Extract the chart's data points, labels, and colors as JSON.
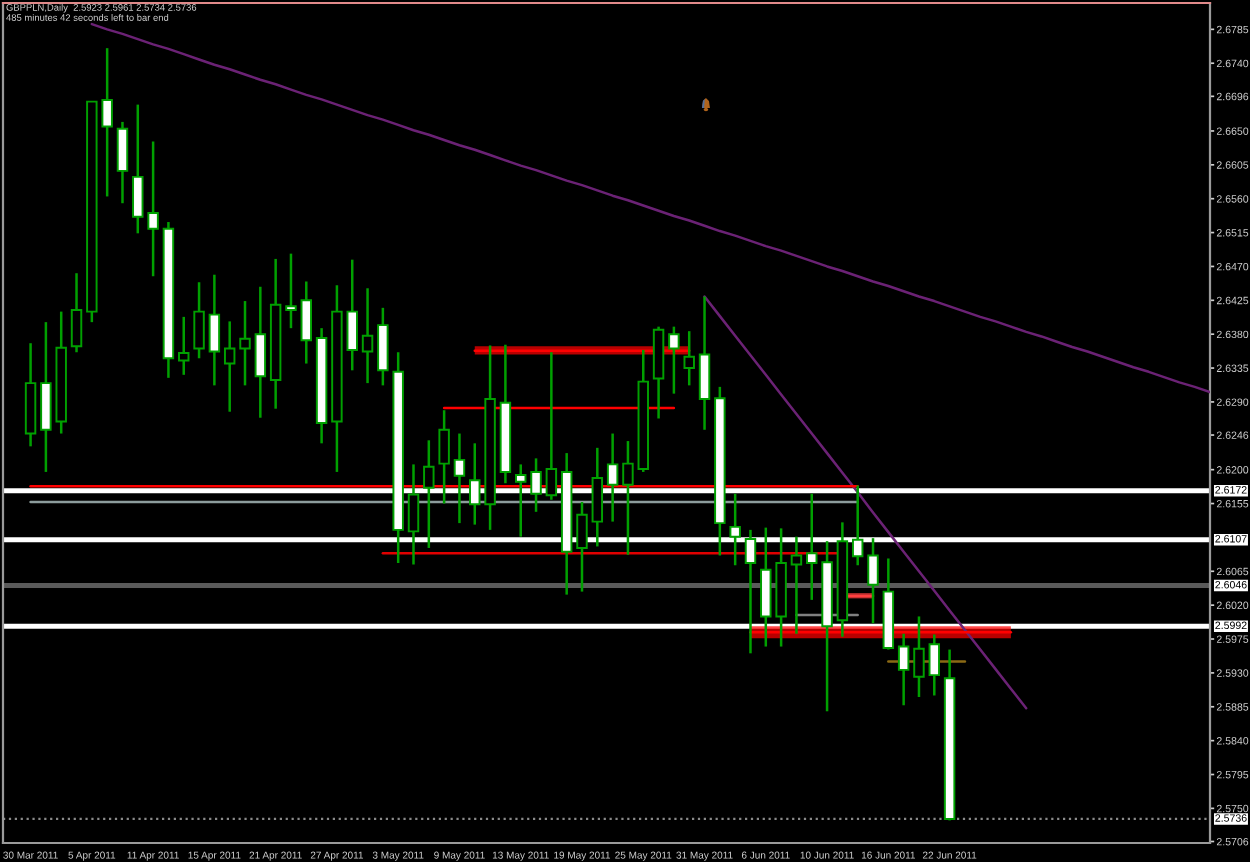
{
  "chart_data": {
    "type": "candlestick",
    "title": "GBPPLN,Daily  2.5923 2.5961 2.5734 2.5736",
    "subtitle": "485 minutes 42 seconds left to bar end",
    "categories": [
      "30 Mar 2011",
      null,
      null,
      null,
      "5 Apr 2011",
      null,
      null,
      null,
      "11 Apr 2011",
      null,
      null,
      null,
      "15 Apr 2011",
      null,
      null,
      null,
      "21 Apr 2011",
      null,
      null,
      null,
      "27 Apr 2011",
      null,
      null,
      null,
      "3 May 2011",
      null,
      null,
      null,
      "9 May 2011",
      null,
      null,
      null,
      "13 May 2011",
      null,
      null,
      null,
      "19 May 2011",
      null,
      null,
      null,
      "25 May 2011",
      null,
      null,
      null,
      "31 May 2011",
      null,
      null,
      null,
      "6 Jun 2011",
      null,
      null,
      null,
      "10 Jun 2011",
      null,
      null,
      null,
      "16 Jun 2011",
      null,
      null,
      null,
      "22 Jun 2011",
      null,
      null,
      null,
      null,
      null,
      null,
      null,
      null,
      null,
      null,
      null,
      null,
      null,
      null,
      null,
      null,
      null
    ],
    "ohlc": [
      [
        2.6248,
        2.6368,
        2.6231,
        2.6315
      ],
      [
        2.6315,
        2.6396,
        2.6197,
        2.6253
      ],
      [
        2.6264,
        2.641,
        2.6248,
        2.6362
      ],
      [
        2.6364,
        2.6461,
        2.6356,
        2.6412
      ],
      [
        2.641,
        2.6689,
        2.6396,
        2.6689
      ],
      [
        2.6691,
        2.676,
        2.6563,
        2.6656
      ],
      [
        2.6653,
        2.6662,
        2.6554,
        2.6597
      ],
      [
        2.6589,
        2.6685,
        2.6514,
        2.6536
      ],
      [
        2.6541,
        2.6636,
        2.6457,
        2.652
      ],
      [
        2.652,
        2.6529,
        2.6322,
        2.6348
      ],
      [
        2.6345,
        2.6403,
        2.6326,
        2.6355
      ],
      [
        2.6361,
        2.6449,
        2.6348,
        2.641
      ],
      [
        2.6406,
        2.6459,
        2.6312,
        2.6357
      ],
      [
        2.6341,
        2.6397,
        2.6277,
        2.6361
      ],
      [
        2.6361,
        2.6424,
        2.6312,
        2.6374
      ],
      [
        2.638,
        2.6443,
        2.6269,
        2.6324
      ],
      [
        2.6319,
        2.648,
        2.6281,
        2.6419
      ],
      [
        2.6417,
        2.6487,
        2.6388,
        2.6412
      ],
      [
        2.6425,
        2.645,
        2.6341,
        2.6372
      ],
      [
        2.6375,
        2.6388,
        2.6235,
        2.6262
      ],
      [
        2.6264,
        2.6445,
        2.6197,
        2.641
      ],
      [
        2.641,
        2.6479,
        2.6332,
        2.6359
      ],
      [
        2.6357,
        2.6441,
        2.6315,
        2.6378
      ],
      [
        2.6392,
        2.6415,
        2.6312,
        2.6332
      ],
      [
        2.633,
        2.6356,
        2.6076,
        2.612
      ],
      [
        2.6118,
        2.6207,
        2.6074,
        2.6167
      ],
      [
        2.6176,
        2.6239,
        2.6096,
        2.6204
      ],
      [
        2.6208,
        2.6279,
        2.6155,
        2.6253
      ],
      [
        2.6213,
        2.6248,
        2.6129,
        2.6192
      ],
      [
        2.6186,
        2.6235,
        2.6127,
        2.6154
      ],
      [
        2.6154,
        2.6365,
        2.612,
        2.6294
      ],
      [
        2.6289,
        2.6366,
        2.6182,
        2.6197
      ],
      [
        2.6193,
        2.6207,
        2.6111,
        2.6184
      ],
      [
        2.6197,
        2.6215,
        2.6144,
        2.6168
      ],
      [
        2.6166,
        2.6356,
        2.616,
        2.6201
      ],
      [
        2.6197,
        2.6222,
        2.6034,
        2.6091
      ],
      [
        2.6096,
        2.6157,
        2.6038,
        2.614
      ],
      [
        2.6131,
        2.6229,
        2.6098,
        2.6189
      ],
      [
        2.6207,
        2.6248,
        2.6131,
        2.618
      ],
      [
        2.618,
        2.6238,
        2.6087,
        2.6208
      ],
      [
        2.6201,
        2.6359,
        2.6197,
        2.6317
      ],
      [
        2.6321,
        2.639,
        2.6268,
        2.6386
      ],
      [
        2.638,
        2.639,
        2.6301,
        2.6361
      ],
      [
        2.6335,
        2.6384,
        2.6312,
        2.635
      ],
      [
        2.6353,
        2.643,
        2.6253,
        2.6294
      ],
      [
        2.6295,
        2.631,
        2.6086,
        2.6129
      ],
      [
        2.6124,
        2.6168,
        2.6073,
        2.6111
      ],
      [
        2.6108,
        2.612,
        2.5956,
        2.6076
      ],
      [
        2.6067,
        2.6123,
        2.5965,
        2.6005
      ],
      [
        2.6005,
        2.6122,
        2.5965,
        2.6076
      ],
      [
        2.6074,
        2.6111,
        2.5982,
        2.6086
      ],
      [
        2.6089,
        2.6168,
        2.6027,
        2.6076
      ],
      [
        2.6077,
        2.6105,
        2.5879,
        2.5992
      ],
      [
        2.6,
        2.613,
        2.5978,
        2.6105
      ],
      [
        2.6107,
        2.6179,
        2.6073,
        2.6085
      ],
      [
        2.6086,
        2.6109,
        2.5996,
        2.6047
      ],
      [
        2.6038,
        2.6082,
        2.5961,
        2.5963
      ],
      [
        2.5965,
        2.5982,
        2.5887,
        2.5934
      ],
      [
        2.5925,
        2.6005,
        2.5898,
        2.5962
      ],
      [
        2.5968,
        2.5981,
        2.59,
        2.5927
      ],
      [
        2.5923,
        2.5961,
        2.5734,
        2.5736
      ],
      null,
      null,
      null,
      null,
      null,
      null,
      null,
      null,
      null,
      null,
      null,
      null,
      null,
      null,
      null,
      null,
      null
    ],
    "color": "#00a000",
    "colors": [
      "#000000",
      "#ffffff",
      "#000000",
      "#000000",
      "#000000",
      "#ffffff",
      "#ffffff",
      "#ffffff",
      "#ffffff",
      "#ffffff",
      "#000000",
      "#000000",
      "#ffffff",
      "#000000",
      "#000000",
      "#ffffff",
      "#000000",
      "#ffffff",
      "#ffffff",
      "#ffffff",
      "#000000",
      "#ffffff",
      "#000000",
      "#ffffff",
      "#ffffff",
      "#000000",
      "#000000",
      "#000000",
      "#ffffff",
      "#ffffff",
      "#000000",
      "#ffffff",
      "#ffffff",
      "#ffffff",
      "#000000",
      "#ffffff",
      "#000000",
      "#000000",
      "#ffffff",
      "#000000",
      "#000000",
      "#000000",
      "#ffffff",
      "#000000",
      "#ffffff",
      "#ffffff",
      "#ffffff",
      "#ffffff",
      "#ffffff",
      "#000000",
      "#000000",
      "#ffffff",
      "#ffffff",
      "#000000",
      "#ffffff",
      "#ffffff",
      "#ffffff",
      "#ffffff",
      "#000000",
      "#ffffff",
      "#ffffff",
      null,
      null,
      null,
      null,
      null,
      null,
      null,
      null,
      null,
      null,
      null,
      null,
      null,
      null,
      null,
      null,
      null
    ],
    "series": [
      {
        "type": "line",
        "color": "#6b2275",
        "values": [
          null,
          null,
          null,
          null,
          2.6792,
          2.6785,
          2.6779,
          2.6772,
          2.6765,
          2.6759,
          2.6752,
          2.6745,
          2.6738,
          2.6732,
          2.6725,
          2.6718,
          2.6712,
          2.6705,
          2.6698,
          2.6692,
          2.6685,
          2.6678,
          2.6671,
          2.6665,
          2.6658,
          2.6651,
          2.6645,
          2.6638,
          2.6631,
          2.6625,
          2.6618,
          2.6611,
          2.6604,
          2.6598,
          2.6591,
          2.6584,
          2.6578,
          2.6571,
          2.6564,
          2.6558,
          2.6551,
          2.6544,
          2.6537,
          2.6531,
          2.6524,
          2.6517,
          2.6511,
          2.6504,
          2.6497,
          2.6491,
          2.6484,
          2.6477,
          2.647,
          2.6464,
          2.6457,
          2.645,
          2.6444,
          2.6437,
          2.643,
          2.6424,
          2.6417,
          2.641,
          2.6403,
          2.6397,
          2.639,
          2.6383,
          2.6377,
          2.637,
          2.6363,
          2.6357,
          2.635,
          2.6343,
          2.6336,
          2.633,
          2.6323,
          2.6316,
          2.631,
          2.6303
        ]
      },
      {
        "type": "line",
        "color": "#6b2275",
        "values": [
          null,
          null,
          null,
          null,
          null,
          null,
          null,
          null,
          null,
          null,
          null,
          null,
          null,
          null,
          null,
          null,
          null,
          null,
          null,
          null,
          null,
          null,
          null,
          null,
          null,
          null,
          null,
          null,
          null,
          null,
          null,
          null,
          null,
          null,
          null,
          null,
          null,
          null,
          null,
          null,
          null,
          null,
          null,
          null,
          2.643,
          2.6404,
          2.6378,
          2.6352,
          2.6326,
          2.63,
          2.6274,
          2.6248,
          2.6222,
          2.6196,
          2.617,
          2.6143,
          2.6117,
          2.6091,
          2.6065,
          2.6039,
          2.6013,
          2.5987,
          2.5961,
          2.5935,
          2.5909,
          2.5883,
          null,
          null,
          null,
          null,
          null,
          null,
          null,
          null,
          null,
          null,
          null,
          null
        ]
      },
      {
        "type": "line",
        "color": "#ff0000",
        "values": [
          null,
          null,
          null,
          null,
          null,
          null,
          null,
          null,
          null,
          null,
          null,
          null,
          null,
          null,
          null,
          null,
          null,
          null,
          null,
          null,
          null,
          null,
          null,
          null,
          null,
          null,
          null,
          null,
          null,
          2.6358,
          2.6358,
          2.6358,
          2.6358,
          2.6358,
          2.6358,
          2.6358,
          2.6358,
          2.6358,
          2.6358,
          2.6358,
          2.6358,
          2.6358,
          2.6358,
          2.6358,
          null,
          null,
          null,
          null,
          null,
          null,
          null,
          null,
          null,
          null,
          null,
          null,
          null,
          null,
          null,
          null,
          null,
          null,
          null,
          null,
          null,
          null,
          null,
          null,
          null,
          null,
          null,
          null,
          null,
          null,
          null,
          null,
          null,
          null
        ],
        "lower": [
          null,
          null,
          null,
          null,
          null,
          null,
          null,
          null,
          null,
          null,
          null,
          null,
          null,
          null,
          null,
          null,
          null,
          null,
          null,
          null,
          null,
          null,
          null,
          null,
          null,
          null,
          null,
          null,
          null,
          2.6353,
          2.6353,
          2.6353,
          2.6353,
          2.6353,
          2.6353,
          2.6353,
          2.6353,
          2.6353,
          2.6353,
          2.6353,
          2.6353,
          2.6353,
          2.6353,
          2.6353,
          null,
          null,
          null,
          null,
          null,
          null,
          null,
          null,
          null,
          null,
          null,
          null,
          null,
          null,
          null,
          null,
          null,
          null,
          null,
          null,
          null,
          null,
          null,
          null,
          null,
          null,
          null,
          null,
          null,
          null,
          null,
          null,
          null,
          null
        ],
        "upper": [
          null,
          null,
          null,
          null,
          null,
          null,
          null,
          null,
          null,
          null,
          null,
          null,
          null,
          null,
          null,
          null,
          null,
          null,
          null,
          null,
          null,
          null,
          null,
          null,
          null,
          null,
          null,
          null,
          null,
          2.6364,
          2.6364,
          2.6364,
          2.6364,
          2.6364,
          2.6364,
          2.6364,
          2.6364,
          2.6364,
          2.6364,
          2.6364,
          2.6364,
          2.6364,
          2.6364,
          2.6364,
          null,
          null,
          null,
          null,
          null,
          null,
          null,
          null,
          null,
          null,
          null,
          null,
          null,
          null,
          null,
          null,
          null,
          null,
          null,
          null,
          null,
          null,
          null,
          null,
          null,
          null,
          null,
          null,
          null,
          null,
          null,
          null,
          null,
          null
        ]
      },
      {
        "type": "line",
        "color": "#ff0000",
        "values": [
          null,
          null,
          null,
          null,
          null,
          null,
          null,
          null,
          null,
          null,
          null,
          null,
          null,
          null,
          null,
          null,
          null,
          null,
          null,
          null,
          null,
          null,
          null,
          null,
          null,
          null,
          null,
          2.6282,
          2.6282,
          2.6282,
          2.6282,
          2.6282,
          2.6282,
          2.6282,
          2.6282,
          2.6282,
          2.6282,
          2.6282,
          2.6282,
          2.6282,
          2.6282,
          2.6282,
          2.6282,
          null,
          null,
          null,
          null,
          null,
          null,
          null,
          null,
          null,
          null,
          null,
          null,
          null,
          null,
          null,
          null,
          null,
          null,
          null,
          null,
          null,
          null,
          null,
          null,
          null,
          null,
          null,
          null,
          null,
          null,
          null,
          null,
          null,
          null,
          null
        ]
      },
      {
        "type": "line",
        "color": "#ff0000",
        "values": [
          2.6178,
          2.6178,
          2.6178,
          2.6178,
          2.6178,
          2.6178,
          2.6178,
          2.6178,
          2.6178,
          2.6178,
          2.6178,
          2.6178,
          2.6178,
          2.6178,
          2.6178,
          2.6178,
          2.6178,
          2.6178,
          2.6178,
          2.6178,
          2.6178,
          2.6178,
          2.6178,
          2.6178,
          2.6178,
          2.6178,
          2.6178,
          2.6178,
          2.6178,
          2.6178,
          2.6178,
          2.6178,
          2.6178,
          2.6178,
          2.6178,
          2.6178,
          2.6178,
          2.6178,
          2.6178,
          2.6178,
          2.6178,
          2.6178,
          2.6178,
          2.6178,
          2.6178,
          2.6178,
          2.6178,
          2.6178,
          2.6178,
          2.6178,
          2.6178,
          2.6178,
          2.6178,
          2.6178,
          2.6178,
          null,
          null,
          null,
          null,
          null,
          null,
          null,
          null,
          null,
          null,
          null,
          null,
          null,
          null,
          null,
          null,
          null,
          null,
          null,
          null,
          null,
          null,
          null
        ]
      },
      {
        "type": "line",
        "color": "#8c9c9c",
        "values": [
          2.6157,
          2.6157,
          2.6157,
          2.6157,
          2.6157,
          2.6157,
          2.6157,
          2.6157,
          2.6157,
          2.6157,
          2.6157,
          2.6157,
          2.6157,
          2.6157,
          2.6157,
          2.6157,
          2.6157,
          2.6157,
          2.6157,
          2.6157,
          2.6157,
          2.6157,
          2.6157,
          2.6157,
          2.6157,
          2.6157,
          2.6157,
          2.6157,
          2.6157,
          2.6157,
          2.6157,
          2.6157,
          2.6157,
          2.6157,
          2.6157,
          2.6157,
          2.6157,
          2.6157,
          2.6157,
          2.6157,
          2.6157,
          2.6157,
          2.6157,
          2.6157,
          2.6157,
          2.6157,
          2.6157,
          2.6157,
          2.6157,
          2.6157,
          2.6157,
          2.6157,
          2.6157,
          2.6157,
          2.6157,
          null,
          null,
          null,
          null,
          null,
          null,
          null,
          null,
          null,
          null,
          null,
          null,
          null,
          null,
          null,
          null,
          null,
          null,
          null,
          null,
          null,
          null,
          null
        ]
      },
      {
        "type": "line",
        "color": "#e00000",
        "values": [
          null,
          null,
          null,
          null,
          null,
          null,
          null,
          null,
          null,
          null,
          null,
          null,
          null,
          null,
          null,
          null,
          null,
          null,
          null,
          null,
          null,
          null,
          null,
          2.6089,
          2.6089,
          2.6089,
          2.6089,
          2.6089,
          2.6089,
          2.6089,
          2.6089,
          2.6089,
          2.6089,
          2.6089,
          2.6089,
          2.6089,
          2.6089,
          2.6089,
          2.6089,
          2.6089,
          2.6089,
          2.6089,
          2.6089,
          2.6089,
          2.6089,
          2.6089,
          2.6089,
          2.6089,
          2.6089,
          2.6089,
          2.6089,
          2.6089,
          2.6089,
          2.6089,
          null,
          null,
          null,
          null,
          null,
          null,
          null,
          null,
          null,
          null,
          null,
          null,
          null,
          null,
          null,
          null,
          null,
          null,
          null,
          null,
          null,
          null,
          null,
          null
        ]
      },
      {
        "type": "line",
        "color": "#ff4040",
        "values": [
          null,
          null,
          null,
          null,
          null,
          null,
          null,
          null,
          null,
          null,
          null,
          null,
          null,
          null,
          null,
          null,
          null,
          null,
          null,
          null,
          null,
          null,
          null,
          null,
          null,
          null,
          null,
          null,
          null,
          null,
          null,
          null,
          null,
          null,
          null,
          null,
          null,
          null,
          null,
          null,
          null,
          null,
          null,
          null,
          null,
          null,
          null,
          null,
          null,
          null,
          null,
          null,
          null,
          2.6032,
          2.6032,
          2.6032,
          null,
          null,
          null,
          null,
          null,
          null,
          null,
          null,
          null,
          null,
          null,
          null,
          null,
          null,
          null,
          null,
          null,
          null,
          null,
          null,
          null,
          null
        ],
        "lower": [
          null,
          null,
          null,
          null,
          null,
          null,
          null,
          null,
          null,
          null,
          null,
          null,
          null,
          null,
          null,
          null,
          null,
          null,
          null,
          null,
          null,
          null,
          null,
          null,
          null,
          null,
          null,
          null,
          null,
          null,
          null,
          null,
          null,
          null,
          null,
          null,
          null,
          null,
          null,
          null,
          null,
          null,
          null,
          null,
          null,
          null,
          null,
          null,
          null,
          null,
          null,
          null,
          null,
          2.6029,
          2.6029,
          2.6029,
          null,
          null,
          null,
          null,
          null,
          null,
          null,
          null,
          null,
          null,
          null,
          null,
          null,
          null,
          null,
          null,
          null,
          null,
          null,
          null,
          null,
          null
        ],
        "upper": [
          null,
          null,
          null,
          null,
          null,
          null,
          null,
          null,
          null,
          null,
          null,
          null,
          null,
          null,
          null,
          null,
          null,
          null,
          null,
          null,
          null,
          null,
          null,
          null,
          null,
          null,
          null,
          null,
          null,
          null,
          null,
          null,
          null,
          null,
          null,
          null,
          null,
          null,
          null,
          null,
          null,
          null,
          null,
          null,
          null,
          null,
          null,
          null,
          null,
          null,
          null,
          null,
          null,
          2.6036,
          2.6036,
          2.6036,
          null,
          null,
          null,
          null,
          null,
          null,
          null,
          null,
          null,
          null,
          null,
          null,
          null,
          null,
          null,
          null,
          null,
          null,
          null,
          null,
          null,
          null
        ]
      },
      {
        "type": "line",
        "color": "#808080",
        "values": [
          null,
          null,
          null,
          null,
          null,
          null,
          null,
          null,
          null,
          null,
          null,
          null,
          null,
          null,
          null,
          null,
          null,
          null,
          null,
          null,
          null,
          null,
          null,
          null,
          null,
          null,
          null,
          null,
          null,
          null,
          null,
          null,
          null,
          null,
          null,
          null,
          null,
          null,
          null,
          null,
          null,
          null,
          null,
          null,
          null,
          null,
          null,
          null,
          null,
          null,
          2.6007,
          2.6007,
          2.6007,
          2.6007,
          2.6007,
          null,
          null,
          null,
          null,
          null,
          null,
          null,
          null,
          null,
          null,
          null,
          null,
          null,
          null,
          null,
          null,
          null,
          null,
          null,
          null,
          null,
          null,
          null
        ]
      },
      {
        "type": "line",
        "color": "#ff0000",
        "values": [
          null,
          null,
          null,
          null,
          null,
          null,
          null,
          null,
          null,
          null,
          null,
          null,
          null,
          null,
          null,
          null,
          null,
          null,
          null,
          null,
          null,
          null,
          null,
          null,
          null,
          null,
          null,
          null,
          null,
          null,
          null,
          null,
          null,
          null,
          null,
          null,
          null,
          null,
          null,
          null,
          null,
          null,
          null,
          null,
          null,
          null,
          null,
          2.5984,
          2.5984,
          2.5984,
          2.5984,
          2.5984,
          2.5984,
          2.5984,
          2.5984,
          2.5984,
          2.5984,
          2.5984,
          2.5984,
          2.5984,
          2.5984,
          2.5984,
          2.5984,
          2.5984,
          2.5984,
          null,
          null,
          null,
          null,
          null,
          null,
          null,
          null,
          null,
          null,
          null,
          null,
          null
        ],
        "lower": [
          null,
          null,
          null,
          null,
          null,
          null,
          null,
          null,
          null,
          null,
          null,
          null,
          null,
          null,
          null,
          null,
          null,
          null,
          null,
          null,
          null,
          null,
          null,
          null,
          null,
          null,
          null,
          null,
          null,
          null,
          null,
          null,
          null,
          null,
          null,
          null,
          null,
          null,
          null,
          null,
          null,
          null,
          null,
          null,
          null,
          null,
          null,
          2.5976,
          2.5976,
          2.5976,
          2.5976,
          2.5976,
          2.5976,
          2.5976,
          2.5976,
          2.5976,
          2.5976,
          2.5976,
          2.5976,
          2.5976,
          2.5976,
          2.5976,
          2.5976,
          2.5976,
          2.5976,
          null,
          null,
          null,
          null,
          null,
          null,
          null,
          null,
          null,
          null,
          null,
          null,
          null
        ],
        "upper": [
          null,
          null,
          null,
          null,
          null,
          null,
          null,
          null,
          null,
          null,
          null,
          null,
          null,
          null,
          null,
          null,
          null,
          null,
          null,
          null,
          null,
          null,
          null,
          null,
          null,
          null,
          null,
          null,
          null,
          null,
          null,
          null,
          null,
          null,
          null,
          null,
          null,
          null,
          null,
          null,
          null,
          null,
          null,
          null,
          null,
          null,
          null,
          2.5992,
          2.5992,
          2.5992,
          2.5992,
          2.5992,
          2.5992,
          2.5992,
          2.5992,
          2.5992,
          2.5992,
          2.5992,
          2.5992,
          2.5992,
          2.5992,
          2.5992,
          2.5992,
          2.5992,
          2.5992,
          null,
          null,
          null,
          null,
          null,
          null,
          null,
          null,
          null,
          null,
          null,
          null,
          null
        ]
      },
      {
        "type": "line",
        "color": "#8b6914",
        "values": [
          null,
          null,
          null,
          null,
          null,
          null,
          null,
          null,
          null,
          null,
          null,
          null,
          null,
          null,
          null,
          null,
          null,
          null,
          null,
          null,
          null,
          null,
          null,
          null,
          null,
          null,
          null,
          null,
          null,
          null,
          null,
          null,
          null,
          null,
          null,
          null,
          null,
          null,
          null,
          null,
          null,
          null,
          null,
          null,
          null,
          null,
          null,
          null,
          null,
          null,
          null,
          null,
          null,
          null,
          null,
          null,
          2.5945,
          2.5945,
          2.5945,
          2.5945,
          2.5945,
          2.5945,
          null,
          null,
          null,
          null,
          null,
          null,
          null,
          null,
          null,
          null,
          null,
          null,
          null,
          null,
          null,
          null
        ]
      }
    ],
    "ref_lines": [
      {
        "axis": "y",
        "value": 2.6172,
        "label": "2.6172",
        "color": "#ffffff"
      },
      {
        "axis": "y",
        "value": 2.6107,
        "label": "2.6107",
        "color": "#ffffff"
      },
      {
        "axis": "y",
        "value": 2.6046,
        "label": "2.6046",
        "color": "#5a5a5a"
      },
      {
        "axis": "y",
        "value": 2.5992,
        "label": "2.5992",
        "color": "#ffffff"
      },
      {
        "axis": "y",
        "value": 2.5736,
        "label": "2.5736",
        "color": "#8a8a8a",
        "line_style": "dotted"
      }
    ],
    "ylim": [
      2.5704,
      2.682
    ],
    "yticks": [
      2.6785,
      {
        "value": 2.674,
        "label": "2.6740"
      },
      2.6696,
      {
        "value": 2.665,
        "label": "2.6650"
      },
      2.6605,
      {
        "value": 2.656,
        "label": "2.6560"
      },
      2.6515,
      {
        "value": 2.647,
        "label": "2.6470"
      },
      2.6425,
      {
        "value": 2.638,
        "label": "2.6380"
      },
      2.6335,
      {
        "value": 2.629,
        "label": "2.6290"
      },
      2.6246,
      {
        "value": 2.62,
        "label": "2.6200"
      },
      2.6155,
      2.6065,
      {
        "value": 2.602,
        "label": "2.6020"
      },
      2.5975,
      {
        "value": 2.593,
        "label": "2.5930"
      },
      2.5885,
      {
        "value": 2.584,
        "label": "2.5840"
      },
      2.5795,
      {
        "value": 2.575,
        "label": "2.5750"
      },
      2.5706
    ]
  }
}
